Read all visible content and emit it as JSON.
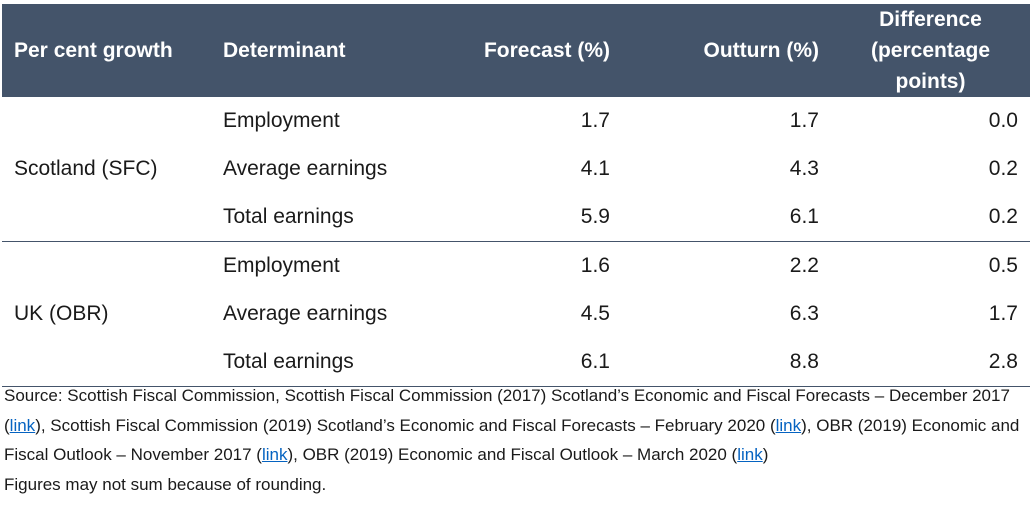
{
  "table": {
    "headers": {
      "group": "Per cent growth",
      "determinant": "Determinant",
      "forecast": "Forecast (%)",
      "outturn": "Outturn (%)",
      "difference_line1": "Difference",
      "difference_line2": "(percentage",
      "difference_line3": "points)"
    },
    "groups": [
      {
        "name": "Scotland (SFC)",
        "rows": [
          {
            "determinant": "Employment",
            "forecast": "1.7",
            "outturn": "1.7",
            "difference": "0.0"
          },
          {
            "determinant": "Average earnings",
            "forecast": "4.1",
            "outturn": "4.3",
            "difference": "0.2"
          },
          {
            "determinant": "Total earnings",
            "forecast": "5.9",
            "outturn": "6.1",
            "difference": "0.2"
          }
        ]
      },
      {
        "name": "UK (OBR)",
        "rows": [
          {
            "determinant": "Employment",
            "forecast": "1.6",
            "outturn": "2.2",
            "difference": "0.5"
          },
          {
            "determinant": "Average earnings",
            "forecast": "4.5",
            "outturn": "6.3",
            "difference": "1.7"
          },
          {
            "determinant": "Total earnings",
            "forecast": "6.1",
            "outturn": "8.8",
            "difference": "2.8"
          }
        ]
      }
    ]
  },
  "source": {
    "prefix": "Source: Scottish Fiscal Commission, Scottish Fiscal Commission (2017) Scotland’s Economic and Fiscal Forecasts – December 2017 (",
    "link1": "link",
    "mid1": "), Scottish Fiscal Commission (2019) Scotland’s Economic and Fiscal Forecasts – February 2020 (",
    "link2": "link",
    "mid2": "), OBR (2019) Economic and Fiscal Outlook – November 2017 (",
    "link3": "link",
    "mid3": "), OBR (2019) Economic and Fiscal Outlook – March 2020 (",
    "link4": "link",
    "suffix": ")"
  },
  "footnote": "Figures may not sum because of rounding.",
  "colors": {
    "header_bg": "#44546a",
    "header_text": "#ffffff",
    "link": "#0563c1"
  }
}
